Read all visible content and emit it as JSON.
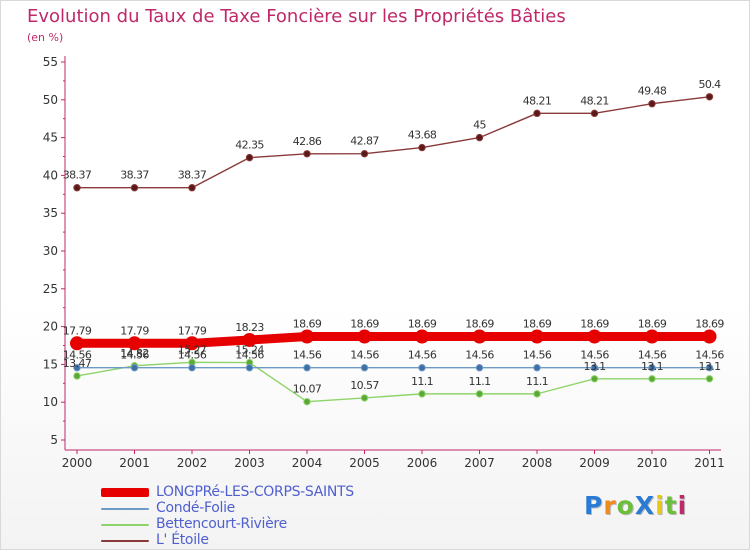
{
  "title": "Evolution du Taux de Taxe Foncière sur les Propriétés Bâties",
  "unit_label": "(en %)",
  "logo": {
    "text": "ProXiti",
    "letters": [
      "P",
      "r",
      "o",
      "X",
      "i",
      "t",
      "i"
    ],
    "colors": [
      "#2a7bd4",
      "#f08a1c",
      "#6bbf3a",
      "#2a7bd4",
      "#e8c61a",
      "#6bbf3a",
      "#c0286a"
    ]
  },
  "chart_data": {
    "type": "line",
    "title": "Evolution du Taux de Taxe Foncière sur les Propriétés Bâties",
    "ylabel": "(en %)",
    "xlabel": "",
    "ylim": [
      5,
      55
    ],
    "yticks": [
      5,
      10,
      15,
      20,
      25,
      30,
      35,
      40,
      45,
      50,
      55
    ],
    "categories": [
      "2000",
      "2001",
      "2002",
      "2003",
      "2004",
      "2005",
      "2006",
      "2007",
      "2008",
      "2009",
      "2010",
      "2011"
    ],
    "grid": false,
    "legend_position": "bottom-left",
    "series": [
      {
        "name": "LONGPRé-LES-CORPS-SAINTS",
        "color": "#e60000",
        "values": [
          17.79,
          17.79,
          17.79,
          18.23,
          18.69,
          18.69,
          18.69,
          18.69,
          18.69,
          18.69,
          18.69,
          18.69
        ],
        "labels": [
          "17.79",
          "17.79",
          "17.79",
          "18.23",
          "18.69",
          "18.69",
          "18.69",
          "18.69",
          "18.69",
          "18.69",
          "18.69",
          "18.69"
        ]
      },
      {
        "name": "Condé-Folie",
        "color": "#6e9ac6",
        "values": [
          14.56,
          14.56,
          14.56,
          14.56,
          14.56,
          14.56,
          14.56,
          14.56,
          14.56,
          14.56,
          14.56,
          14.56
        ],
        "labels": [
          "14.56",
          "14.56",
          "14.56",
          "14.56",
          "14.56",
          "14.56",
          "14.56",
          "14.56",
          "14.56",
          "14.56",
          "14.56",
          "14.56"
        ]
      },
      {
        "name": "Bettencourt-Rivière",
        "color": "#8fd46a",
        "values": [
          13.47,
          14.82,
          15.27,
          15.24,
          10.07,
          10.57,
          11.1,
          11.1,
          11.1,
          13.1,
          13.1,
          13.1
        ],
        "labels": [
          "13.47",
          "14.82",
          "15.27",
          "15.24",
          "10.07",
          "10.57",
          "11.1",
          "11.1",
          "11.1",
          "13.1",
          "13.1",
          "13.1"
        ]
      },
      {
        "name": "L' Étoile",
        "color": "#8b3a3a",
        "values": [
          38.37,
          38.37,
          38.37,
          42.35,
          42.86,
          42.87,
          43.68,
          45,
          48.21,
          48.21,
          49.48,
          50.4
        ],
        "labels": [
          "38.37",
          "38.37",
          "38.37",
          "42.35",
          "42.86",
          "42.87",
          "43.68",
          "45",
          "48.21",
          "48.21",
          "49.48",
          "50.4"
        ]
      }
    ]
  }
}
